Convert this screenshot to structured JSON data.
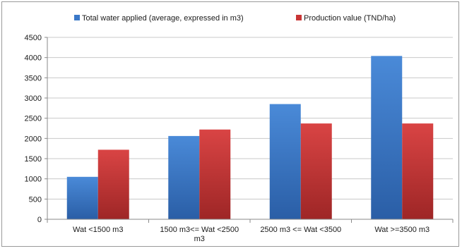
{
  "chart_data": {
    "type": "bar",
    "title": "",
    "xlabel": "",
    "ylabel": "",
    "ylim": [
      0,
      4500
    ],
    "yticks": [
      0,
      500,
      1000,
      1500,
      2000,
      2500,
      3000,
      3500,
      4000,
      4500
    ],
    "grid": true,
    "legend_position": "top",
    "categories": [
      [
        "Wat <1500 m3"
      ],
      [
        "1500 m3<= Wat <2500",
        "m3"
      ],
      [
        "2500 m3 <= Wat <3500"
      ],
      [
        "Wat >=3500 m3"
      ]
    ],
    "series": [
      {
        "name": "Total water applied (average, expressed in m3)",
        "color": "#3a78c8",
        "values": [
          1050,
          2060,
          2850,
          4040
        ]
      },
      {
        "name": "Production value (TND/ha)",
        "color": "#c93535",
        "values": [
          1720,
          2220,
          2370,
          2370
        ]
      }
    ]
  }
}
